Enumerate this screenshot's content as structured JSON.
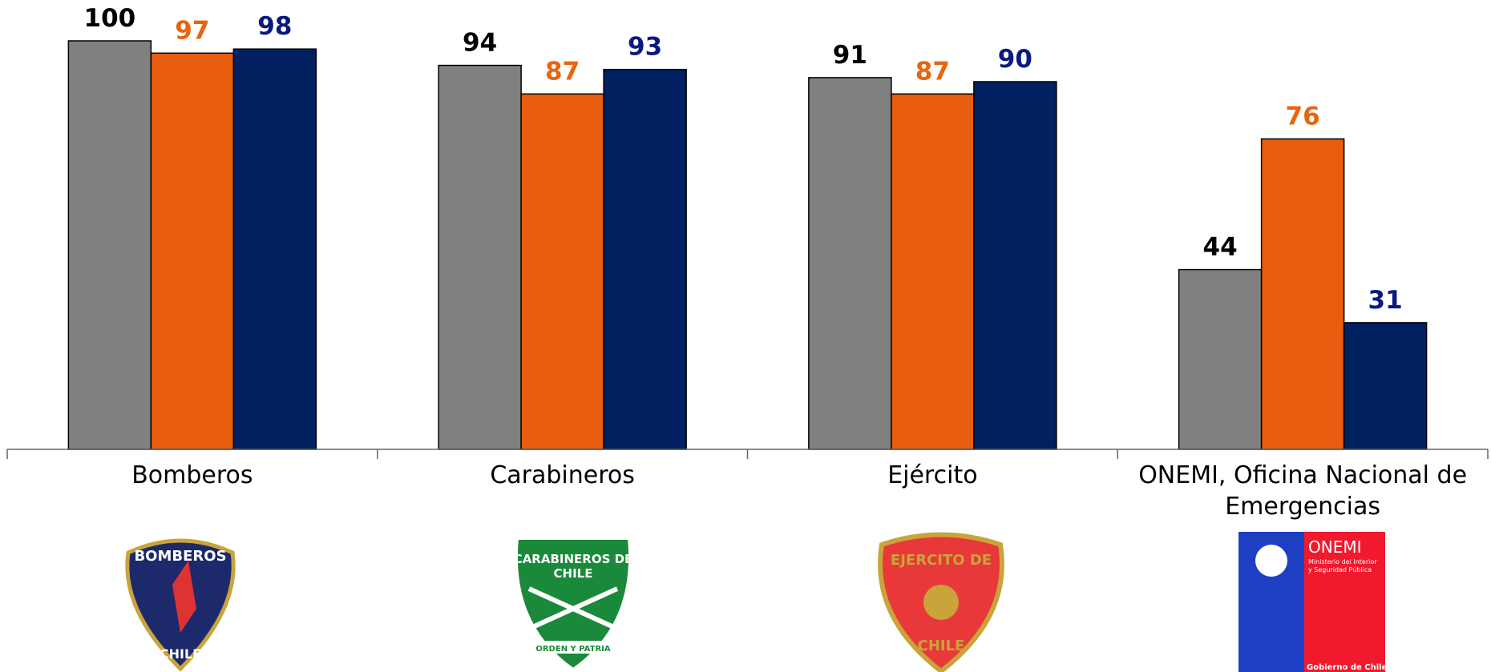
{
  "chart_data": {
    "type": "bar",
    "categories": [
      "Bomberos",
      "Carabineros",
      "Ejército",
      "ONEMI, Oficina Nacional de Emergencias"
    ],
    "series": [
      {
        "color": "#808080",
        "label_color": "#000000",
        "values": [
          100,
          94,
          91,
          44
        ]
      },
      {
        "color": "#E85D10",
        "label_color": "#E8650F",
        "values": [
          97,
          87,
          87,
          76
        ]
      },
      {
        "color": "#002060",
        "label_color": "#0A1A80",
        "values": [
          98,
          93,
          90,
          31
        ]
      }
    ],
    "ylim": [
      0,
      100
    ]
  },
  "logos": [
    {
      "texts": [
        "BOMBEROS",
        "CHILE"
      ]
    },
    {
      "texts": [
        "CARABINEROS DE",
        "CHILE",
        "ORDEN Y PATRIA"
      ]
    },
    {
      "texts": [
        "EJERCITO DE",
        "CHILE"
      ]
    },
    {
      "texts": [
        "ONEMI",
        "Ministerio del Interior",
        "y Seguridad Pública",
        "Gobierno de Chile"
      ]
    }
  ]
}
